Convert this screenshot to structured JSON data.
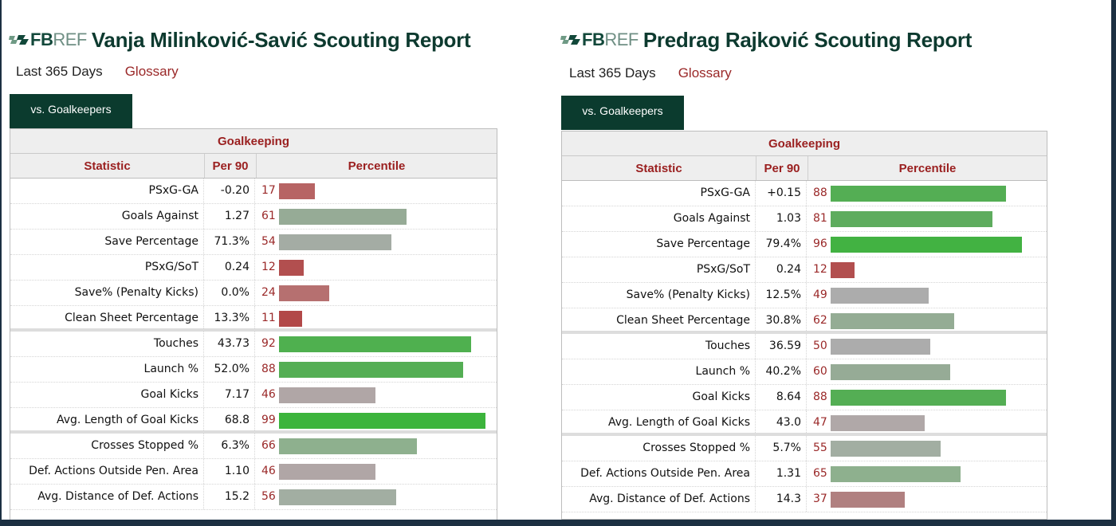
{
  "brand": {
    "fb": "FB",
    "ref": "REF",
    "mark": "logo-icon"
  },
  "reports": [
    {
      "id": "left",
      "title": "Vanja Milinković-Savić Scouting Report",
      "period": "Last 365 Days",
      "glossary": "Glossary",
      "tab": "vs. Goalkeepers",
      "group_header": "Goalkeeping",
      "columns": [
        "Statistic",
        "Per 90",
        "Percentile"
      ],
      "rows": [
        {
          "stat": "PSxG-GA",
          "per90": "-0.20",
          "pct": 17,
          "color": "#b76464",
          "sep": false
        },
        {
          "stat": "Goals Against",
          "per90": "1.27",
          "pct": 61,
          "color": "#96ab96",
          "sep": false
        },
        {
          "stat": "Save Percentage",
          "per90": "71.3%",
          "pct": 54,
          "color": "#a4aca4",
          "sep": false
        },
        {
          "stat": "PSxG/SoT",
          "per90": "0.24",
          "pct": 12,
          "color": "#b24f4f",
          "sep": false
        },
        {
          "stat": "Save% (Penalty Kicks)",
          "per90": "0.0%",
          "pct": 24,
          "color": "#b67070",
          "sep": false
        },
        {
          "stat": "Clean Sheet Percentage",
          "per90": "13.3%",
          "pct": 11,
          "color": "#b24848",
          "sep": true
        },
        {
          "stat": "Touches",
          "per90": "43.73",
          "pct": 92,
          "color": "#4fb04f",
          "sep": false
        },
        {
          "stat": "Launch %",
          "per90": "52.0%",
          "pct": 88,
          "color": "#54ae54",
          "sep": false
        },
        {
          "stat": "Goal Kicks",
          "per90": "7.17",
          "pct": 46,
          "color": "#b0a6a6",
          "sep": false
        },
        {
          "stat": "Avg. Length of Goal Kicks",
          "per90": "68.8",
          "pct": 99,
          "color": "#3cb43c",
          "sep": true
        },
        {
          "stat": "Crosses Stopped %",
          "per90": "6.3%",
          "pct": 66,
          "color": "#8eb08e",
          "sep": false
        },
        {
          "stat": "Def. Actions Outside Pen. Area",
          "per90": "1.10",
          "pct": 46,
          "color": "#b0a6a6",
          "sep": false
        },
        {
          "stat": "Avg. Distance of Def. Actions",
          "per90": "15.2",
          "pct": 56,
          "color": "#a2aea2",
          "sep": false
        }
      ]
    },
    {
      "id": "right",
      "title": "Predrag Rajković Scouting Report",
      "period": "Last 365 Days",
      "glossary": "Glossary",
      "tab": "vs. Goalkeepers",
      "group_header": "Goalkeeping",
      "columns": [
        "Statistic",
        "Per 90",
        "Percentile"
      ],
      "rows": [
        {
          "stat": "PSxG-GA",
          "per90": "+0.15",
          "pct": 88,
          "color": "#54ae54",
          "sep": false
        },
        {
          "stat": "Goals Against",
          "per90": "1.03",
          "pct": 81,
          "color": "#5eac5e",
          "sep": false
        },
        {
          "stat": "Save Percentage",
          "per90": "79.4%",
          "pct": 96,
          "color": "#42b242",
          "sep": false
        },
        {
          "stat": "PSxG/SoT",
          "per90": "0.24",
          "pct": 12,
          "color": "#b24f4f",
          "sep": false
        },
        {
          "stat": "Save% (Penalty Kicks)",
          "per90": "12.5%",
          "pct": 49,
          "color": "#acacac",
          "sep": false
        },
        {
          "stat": "Clean Sheet Percentage",
          "per90": "30.8%",
          "pct": 62,
          "color": "#94ac94",
          "sep": true
        },
        {
          "stat": "Touches",
          "per90": "36.59",
          "pct": 50,
          "color": "#acacac",
          "sep": false
        },
        {
          "stat": "Launch %",
          "per90": "40.2%",
          "pct": 60,
          "color": "#96ab96",
          "sep": false
        },
        {
          "stat": "Goal Kicks",
          "per90": "8.64",
          "pct": 88,
          "color": "#54ae54",
          "sep": false
        },
        {
          "stat": "Avg. Length of Goal Kicks",
          "per90": "43.0",
          "pct": 47,
          "color": "#b0a8a8",
          "sep": true
        },
        {
          "stat": "Crosses Stopped %",
          "per90": "5.7%",
          "pct": 55,
          "color": "#a2aea2",
          "sep": false
        },
        {
          "stat": "Def. Actions Outside Pen. Area",
          "per90": "1.31",
          "pct": 65,
          "color": "#8eb08e",
          "sep": false
        },
        {
          "stat": "Avg. Distance of Def. Actions",
          "per90": "14.3",
          "pct": 37,
          "color": "#b08080",
          "sep": false
        }
      ]
    }
  ]
}
